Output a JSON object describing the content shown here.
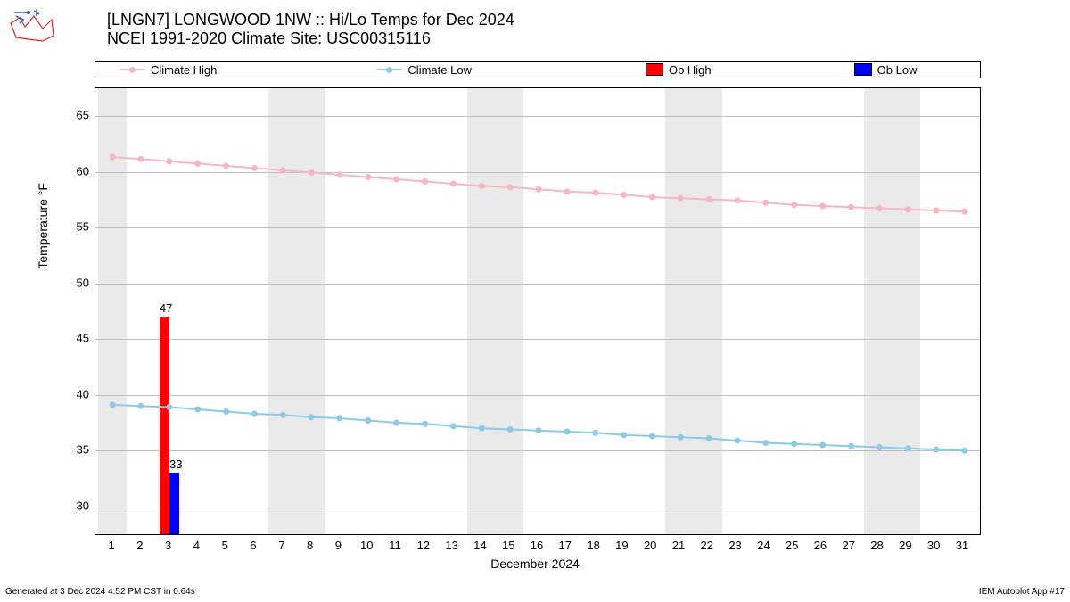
{
  "title": {
    "line1": "[LNGN7] LONGWOOD 1NW :: Hi/Lo Temps for Dec 2024",
    "line2": "NCEI 1991-2020 Climate Site: USC00315116"
  },
  "legend": {
    "climate_high": "Climate High",
    "climate_low": "Climate Low",
    "ob_high": "Ob High",
    "ob_low": "Ob Low"
  },
  "chart": {
    "type": "line+bar",
    "xlabel": "December 2024",
    "ylabel": "Temperature °F",
    "ylim": [
      27.5,
      67.5
    ],
    "yticks": [
      30,
      35,
      40,
      45,
      50,
      55,
      60,
      65
    ],
    "xlim": [
      0.4,
      31.6
    ],
    "xticks": [
      1,
      2,
      3,
      4,
      5,
      6,
      7,
      8,
      9,
      10,
      11,
      12,
      13,
      14,
      15,
      16,
      17,
      18,
      19,
      20,
      21,
      22,
      23,
      24,
      25,
      26,
      27,
      28,
      29,
      30,
      31
    ],
    "background_color": "#ffffff",
    "weekend_color": "#eaeaea",
    "grid_color": "#bfbfbf",
    "climate_high_color": "#f7b6c2",
    "climate_low_color": "#89cbe8",
    "ob_high_color": "#ff0000",
    "ob_low_color": "#0000ff",
    "marker_radius": 3.5,
    "line_width": 2,
    "weekend_bands": [
      [
        1,
        1
      ],
      [
        7,
        8
      ],
      [
        14,
        15
      ],
      [
        21,
        22
      ],
      [
        28,
        29
      ]
    ],
    "climate_high": [
      61.4,
      61.2,
      61.0,
      60.8,
      60.6,
      60.4,
      60.2,
      60.0,
      59.8,
      59.6,
      59.4,
      59.2,
      59.0,
      58.8,
      58.7,
      58.5,
      58.3,
      58.2,
      58.0,
      57.8,
      57.7,
      57.6,
      57.5,
      57.3,
      57.1,
      57.0,
      56.9,
      56.8,
      56.7,
      56.6,
      56.5
    ],
    "climate_low": [
      39.2,
      39.1,
      39.0,
      38.8,
      38.6,
      38.4,
      38.3,
      38.1,
      38.0,
      37.8,
      37.6,
      37.5,
      37.3,
      37.1,
      37.0,
      36.9,
      36.8,
      36.7,
      36.5,
      36.4,
      36.3,
      36.2,
      36.0,
      35.8,
      35.7,
      35.6,
      35.5,
      35.4,
      35.3,
      35.2,
      35.1
    ],
    "obs": [
      {
        "day": 3,
        "high": 47,
        "low": 33
      }
    ],
    "bar_half_width": 0.35
  },
  "footer": {
    "left": "Generated at 3 Dec 2024 4:52 PM CST in 0.64s",
    "right": "IEM Autoplot App #17"
  }
}
